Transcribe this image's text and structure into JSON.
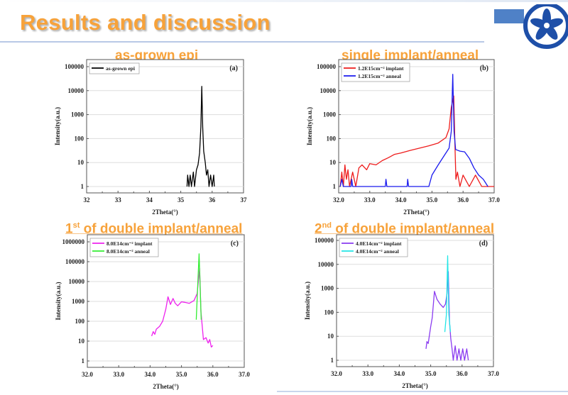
{
  "slide": {
    "title": "Results and discussion"
  },
  "panels": [
    {
      "heading": "as-grown epi",
      "heading_sup": "",
      "heading_prefix": ""
    },
    {
      "heading": "single implant/anneal",
      "heading_sup": "",
      "heading_prefix": ""
    },
    {
      "heading": " of double implant/anneal",
      "heading_sup": "st",
      "heading_prefix": "1"
    },
    {
      "heading": " of double implant/anneal",
      "heading_sup": "nd",
      "heading_prefix": "2"
    }
  ],
  "chart_data": [
    {
      "type": "line",
      "panel_label": "(a)",
      "xlabel": "2Theta(°)",
      "ylabel": "Intensity(a.u.)",
      "xlim": [
        32,
        37
      ],
      "ylim": [
        0.5,
        100000
      ],
      "yscale": "log",
      "xticks": [
        "32",
        "33",
        "34",
        "35",
        "36",
        "37"
      ],
      "xtick_values": [
        32,
        33,
        34,
        35,
        36,
        37
      ],
      "yticks": [
        "1",
        "10",
        "100",
        "1000",
        "10000",
        "100000"
      ],
      "ytick_values": [
        1,
        10,
        100,
        1000,
        10000,
        100000
      ],
      "grid": true,
      "legend": "top-left",
      "series": [
        {
          "name": "as-grown epi",
          "color": "#000000",
          "points": [
            [
              35.2,
              1
            ],
            [
              35.22,
              3
            ],
            [
              35.26,
              1
            ],
            [
              35.3,
              3
            ],
            [
              35.34,
              1
            ],
            [
              35.4,
              4
            ],
            [
              35.44,
              1
            ],
            [
              35.5,
              5
            ],
            [
              35.55,
              8
            ],
            [
              35.6,
              25
            ],
            [
              35.64,
              300
            ],
            [
              35.67,
              15000
            ],
            [
              35.7,
              300
            ],
            [
              35.73,
              30
            ],
            [
              35.78,
              10
            ],
            [
              35.82,
              3
            ],
            [
              35.86,
              5
            ],
            [
              35.9,
              1
            ],
            [
              35.95,
              3
            ],
            [
              36.0,
              1
            ],
            [
              36.05,
              3
            ],
            [
              36.07,
              1
            ]
          ]
        }
      ]
    },
    {
      "type": "line",
      "panel_label": "(b)",
      "xlabel": "2Theta(°)",
      "ylabel": "Intensity(a.u.)",
      "xlim": [
        32,
        37
      ],
      "ylim": [
        0.7,
        100000
      ],
      "yscale": "log",
      "xticks": [
        "32.0",
        "33.0",
        "34.0",
        "35.0",
        "36.0",
        "37.0"
      ],
      "xtick_values": [
        32,
        33,
        34,
        35,
        36,
        37
      ],
      "yticks": [
        "1",
        "10",
        "100",
        "1000",
        "10000",
        "100000"
      ],
      "ytick_values": [
        1,
        10,
        100,
        1000,
        10000,
        100000
      ],
      "grid": true,
      "legend": "top-left",
      "series": [
        {
          "name": "1.2E15cm⁻² implant",
          "color": "#ee1c1c",
          "points": [
            [
              32.05,
              1
            ],
            [
              32.1,
              4
            ],
            [
              32.15,
              1
            ],
            [
              32.2,
              8
            ],
            [
              32.25,
              2
            ],
            [
              32.3,
              5
            ],
            [
              32.35,
              1
            ],
            [
              32.45,
              4
            ],
            [
              32.55,
              1
            ],
            [
              32.65,
              6
            ],
            [
              32.75,
              8
            ],
            [
              32.9,
              5
            ],
            [
              33.0,
              9
            ],
            [
              33.2,
              8
            ],
            [
              33.4,
              12
            ],
            [
              33.6,
              16
            ],
            [
              33.8,
              22
            ],
            [
              34.0,
              25
            ],
            [
              34.3,
              32
            ],
            [
              34.6,
              40
            ],
            [
              34.9,
              50
            ],
            [
              35.2,
              65
            ],
            [
              35.45,
              110
            ],
            [
              35.55,
              250
            ],
            [
              35.62,
              2000
            ],
            [
              35.7,
              6000
            ],
            [
              35.74,
              50
            ],
            [
              35.77,
              2
            ],
            [
              35.82,
              4
            ],
            [
              35.9,
              1
            ],
            [
              36.0,
              3
            ],
            [
              36.2,
              1
            ],
            [
              36.4,
              3
            ],
            [
              36.6,
              1
            ],
            [
              37.0,
              1
            ]
          ]
        },
        {
          "name": "1.2E15cm⁻² anneal",
          "color": "#1a1aee",
          "points": [
            [
              32.05,
              1
            ],
            [
              32.1,
              2
            ],
            [
              32.15,
              1
            ],
            [
              32.4,
              1
            ],
            [
              32.42,
              2
            ],
            [
              32.45,
              1
            ],
            [
              33.5,
              1
            ],
            [
              33.52,
              2
            ],
            [
              33.55,
              1
            ],
            [
              34.2,
              1
            ],
            [
              34.22,
              2
            ],
            [
              34.25,
              1
            ],
            [
              34.9,
              1
            ],
            [
              35.0,
              3
            ],
            [
              35.2,
              8
            ],
            [
              35.4,
              20
            ],
            [
              35.55,
              40
            ],
            [
              35.62,
              200
            ],
            [
              35.67,
              48000
            ],
            [
              35.71,
              200
            ],
            [
              35.76,
              35
            ],
            [
              35.9,
              30
            ],
            [
              36.05,
              28
            ],
            [
              36.2,
              15
            ],
            [
              36.35,
              6
            ],
            [
              36.5,
              3
            ],
            [
              36.65,
              2
            ],
            [
              36.8,
              1
            ]
          ]
        }
      ]
    },
    {
      "type": "line",
      "panel_label": "(c)",
      "xlabel": "2Theta(°)",
      "ylabel": "Intensity(a.u.)",
      "xlim": [
        32,
        37
      ],
      "ylim": [
        0.5,
        1000000
      ],
      "yscale": "log",
      "xticks": [
        "32.0",
        "33.0",
        "34.0",
        "35.0",
        "36.0",
        "37.0"
      ],
      "xtick_values": [
        32,
        33,
        34,
        35,
        36,
        37
      ],
      "yticks": [
        "1",
        "10",
        "100",
        "1000",
        "10000",
        "100000",
        "1000000"
      ],
      "ytick_values": [
        1,
        10,
        100,
        1000,
        10000,
        100000,
        1000000
      ],
      "grid": true,
      "legend": "top-left",
      "series": [
        {
          "name": "8.0E14cm⁻² implant",
          "color": "#ee22ee",
          "points": [
            [
              34.05,
              18
            ],
            [
              34.1,
              30
            ],
            [
              34.15,
              22
            ],
            [
              34.2,
              40
            ],
            [
              34.3,
              55
            ],
            [
              34.4,
              100
            ],
            [
              34.5,
              400
            ],
            [
              34.57,
              1700
            ],
            [
              34.65,
              700
            ],
            [
              34.73,
              1400
            ],
            [
              34.8,
              800
            ],
            [
              34.88,
              600
            ],
            [
              35.0,
              950
            ],
            [
              35.1,
              900
            ],
            [
              35.25,
              800
            ],
            [
              35.4,
              1100
            ],
            [
              35.5,
              2500
            ],
            [
              35.58,
              45000
            ],
            [
              35.62,
              300
            ],
            [
              35.67,
              40
            ],
            [
              35.7,
              12
            ],
            [
              35.78,
              15
            ],
            [
              35.85,
              8
            ],
            [
              35.9,
              12
            ],
            [
              35.95,
              5
            ],
            [
              36.0,
              6
            ]
          ]
        },
        {
          "name": "8.0E14cm⁻² anneal",
          "color": "#33ee33",
          "points": [
            [
              35.47,
              120
            ],
            [
              35.56,
              250000
            ],
            [
              35.63,
              120
            ]
          ]
        }
      ]
    },
    {
      "type": "line",
      "panel_label": "(d)",
      "xlabel": "2Theta(°)",
      "ylabel": "Intensity(a.u.)",
      "xlim": [
        32,
        37
      ],
      "ylim": [
        0.7,
        100000
      ],
      "yscale": "log",
      "xticks": [
        "32.0",
        "33.0",
        "34.0",
        "35.0",
        "36.0",
        "37.0"
      ],
      "xtick_values": [
        32,
        33,
        34,
        35,
        36,
        37
      ],
      "yticks": [
        "1",
        "10",
        "100",
        "1000",
        "10000",
        "100000"
      ],
      "ytick_values": [
        1,
        10,
        100,
        1000,
        10000,
        100000
      ],
      "grid": true,
      "legend": "top-left",
      "series": [
        {
          "name": "4.0E14cm⁻² implant",
          "color": "#8a3cf0",
          "points": [
            [
              34.85,
              3
            ],
            [
              34.88,
              6
            ],
            [
              34.92,
              5
            ],
            [
              35.0,
              25
            ],
            [
              35.05,
              60
            ],
            [
              35.12,
              750
            ],
            [
              35.2,
              350
            ],
            [
              35.3,
              220
            ],
            [
              35.4,
              160
            ],
            [
              35.47,
              220
            ],
            [
              35.52,
              600
            ],
            [
              35.56,
              5000
            ],
            [
              35.6,
              40
            ],
            [
              35.64,
              8
            ],
            [
              35.68,
              3
            ],
            [
              35.72,
              1
            ],
            [
              35.78,
              4
            ],
            [
              35.84,
              1
            ],
            [
              35.9,
              3
            ],
            [
              35.96,
              1
            ],
            [
              36.02,
              3
            ],
            [
              36.08,
              1
            ],
            [
              36.15,
              3
            ],
            [
              36.2,
              1
            ]
          ]
        },
        {
          "name": "4.0E14cm⁻² anneal",
          "color": "#22e6e6",
          "points": [
            [
              35.45,
              15
            ],
            [
              35.5,
              80
            ],
            [
              35.54,
              23000
            ],
            [
              35.58,
              80
            ],
            [
              35.63,
              15
            ]
          ]
        }
      ]
    }
  ]
}
